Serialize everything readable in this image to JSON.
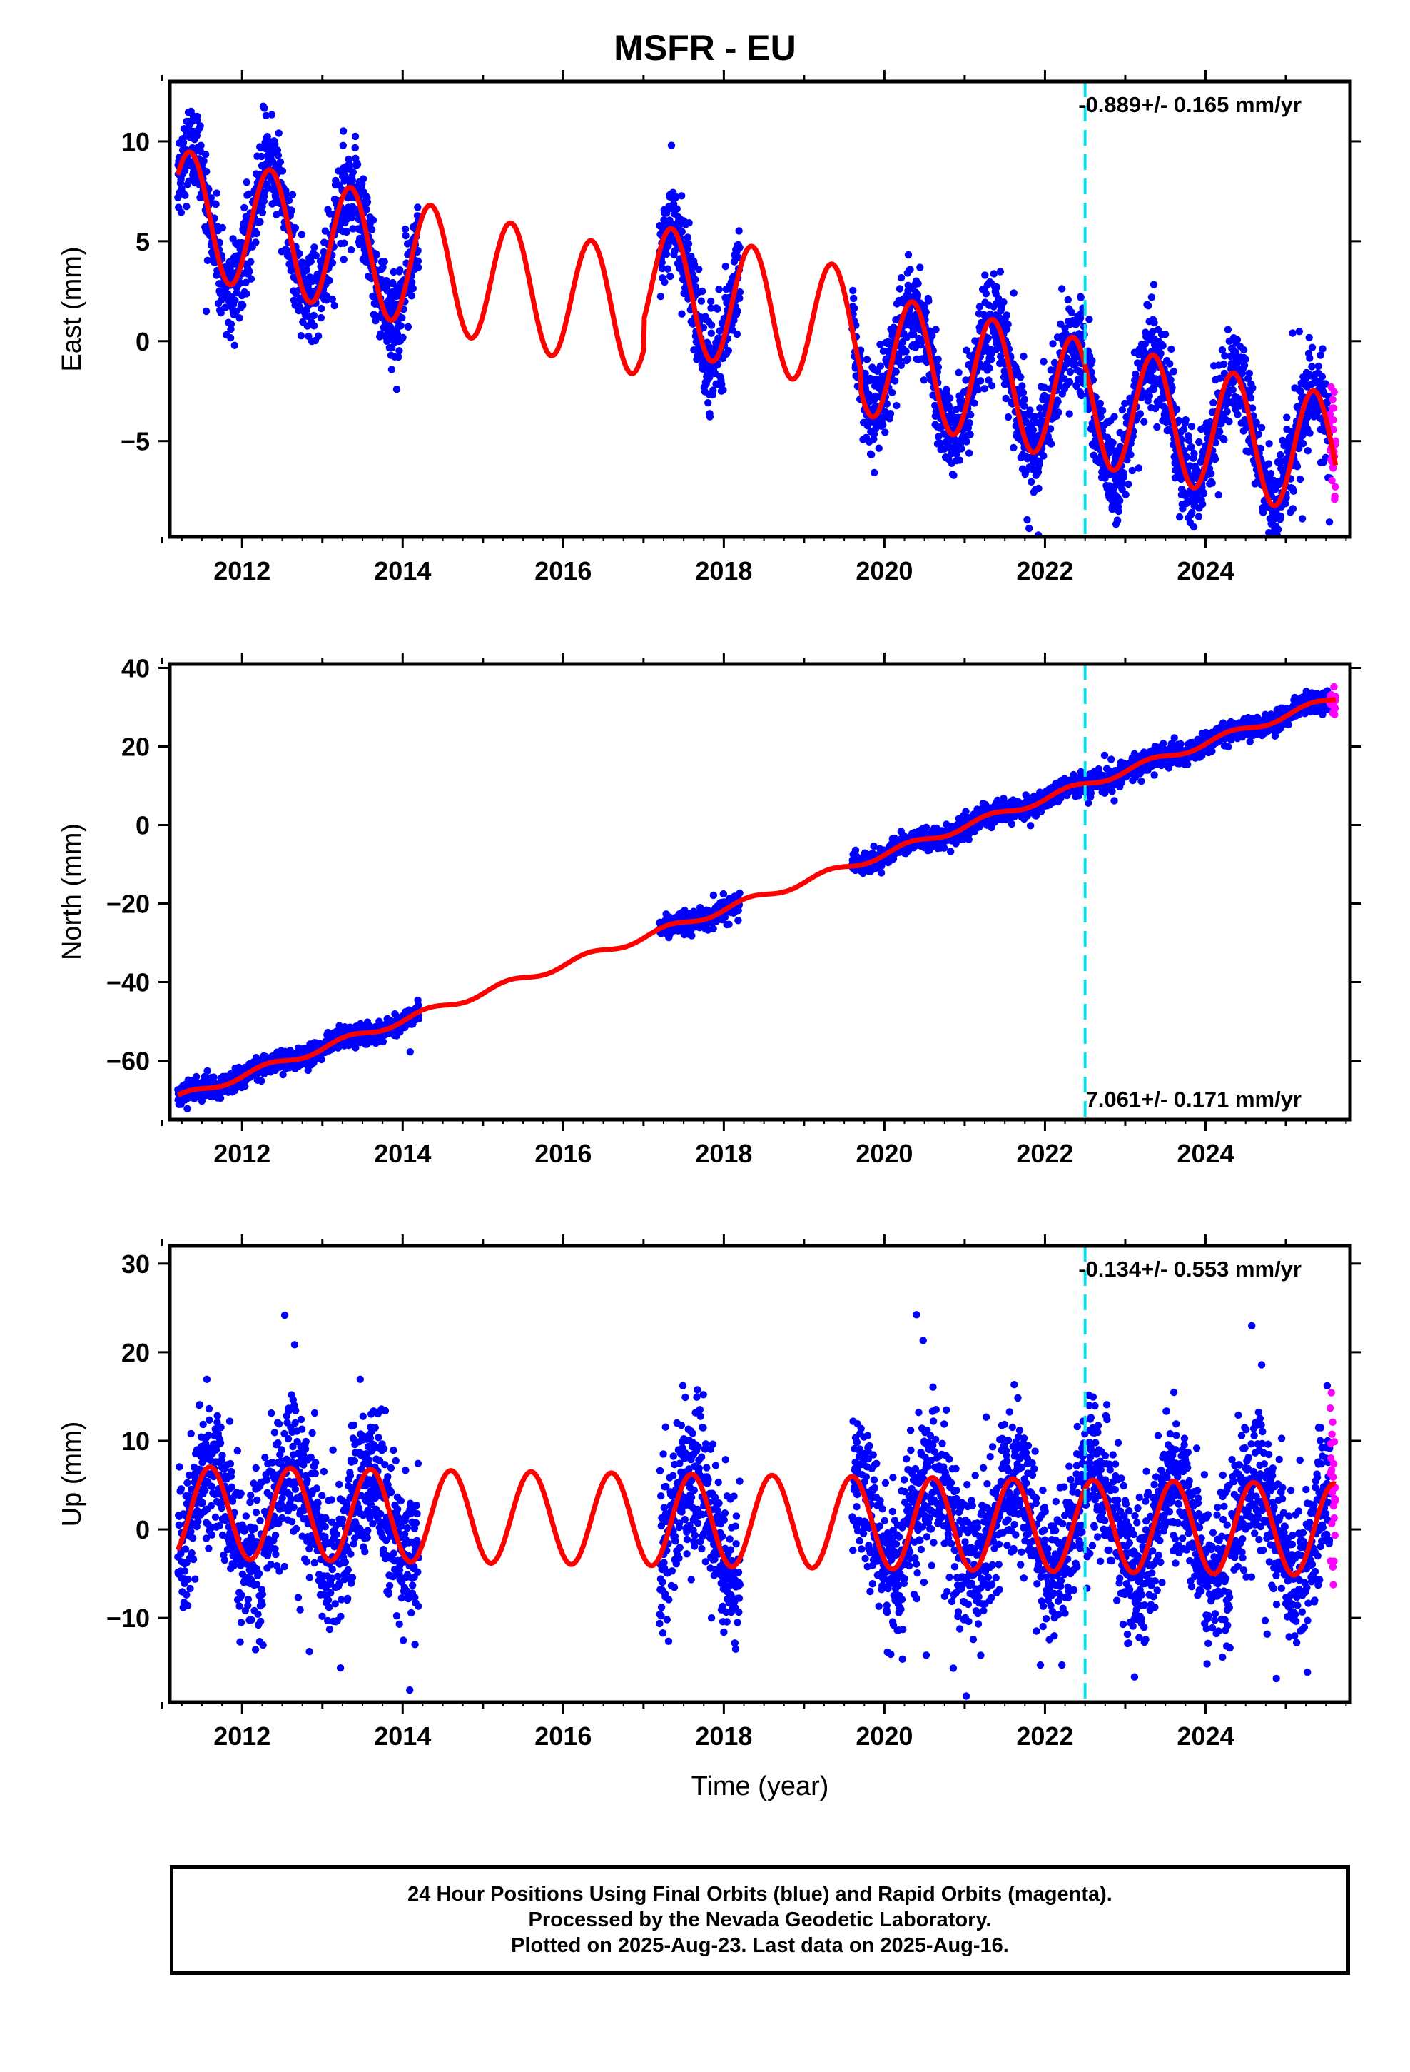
{
  "title": "MSFR - EU",
  "footer": {
    "line1": "24 Hour Positions Using Final Orbits (blue) and Rapid Orbits (magenta).",
    "line2": "Processed by the Nevada Geodetic Laboratory.",
    "line3": "Plotted on 2025-Aug-23. Last data on 2025-Aug-16."
  },
  "colors": {
    "final_orbits": "#0000ff",
    "rapid_orbits": "#ff00ff",
    "model_fit": "#ff0000",
    "event_line": "#00e5ee"
  },
  "chart_data": [
    {
      "type": "scatter",
      "panel": "east",
      "ylabel": "East (mm)",
      "xlabel": "",
      "xlim": [
        2011.1,
        2025.8
      ],
      "ylim": [
        -9.8,
        13.0
      ],
      "xticks": [
        2012,
        2014,
        2016,
        2018,
        2020,
        2022,
        2024
      ],
      "yticks": [
        -5,
        0,
        5,
        10
      ],
      "rate_annotation": "-0.889+/- 0.165 mm/yr",
      "rate_position": "top-right",
      "event_line_x": 2022.5,
      "data_segments": [
        [
          2011.2,
          2014.2
        ],
        [
          2017.2,
          2018.2
        ],
        [
          2019.6,
          2025.55
        ]
      ],
      "rapid_segment": [
        2025.55,
        2025.62
      ],
      "model": {
        "rate": -0.889,
        "offset": 6.5,
        "annual_amplitude": 3.1,
        "peak_phase": 0.35,
        "steps": [
          {
            "year": 2017.0,
            "size": 1.5
          },
          {
            "year": 2019.7,
            "size": -1.0
          }
        ]
      },
      "scatter_sigma": 1.1
    },
    {
      "type": "scatter",
      "panel": "north",
      "ylabel": "North (mm)",
      "xlabel": "",
      "xlim": [
        2011.1,
        2025.8
      ],
      "ylim": [
        -75,
        41
      ],
      "xticks": [
        2012,
        2014,
        2016,
        2018,
        2020,
        2022,
        2024
      ],
      "yticks": [
        -60,
        -40,
        -20,
        0,
        20,
        40
      ],
      "rate_annotation": "7.061+/- 0.171 mm/yr",
      "rate_position": "bottom-right",
      "event_line_x": 2022.5,
      "data_segments": [
        [
          2011.2,
          2014.2
        ],
        [
          2017.2,
          2018.2
        ],
        [
          2019.6,
          2025.55
        ]
      ],
      "rapid_segment": [
        2025.55,
        2025.62
      ],
      "model": {
        "rate": 7.061,
        "offset": -69.5,
        "annual_amplitude": 0.9,
        "peak_phase": 0.3,
        "steps": []
      },
      "scatter_sigma": 1.2
    },
    {
      "type": "scatter",
      "panel": "up",
      "ylabel": "Up (mm)",
      "xlabel": "Time (year)",
      "xlim": [
        2011.1,
        2025.8
      ],
      "ylim": [
        -19.5,
        32
      ],
      "xticks": [
        2012,
        2014,
        2016,
        2018,
        2020,
        2022,
        2024
      ],
      "yticks": [
        -10,
        0,
        10,
        20,
        30
      ],
      "rate_annotation": "-0.134+/- 0.553 mm/yr",
      "rate_position": "top-right",
      "event_line_x": 2022.5,
      "data_segments": [
        [
          2011.2,
          2014.2
        ],
        [
          2017.2,
          2018.2
        ],
        [
          2019.6,
          2025.55
        ]
      ],
      "rapid_segment": [
        2025.55,
        2025.62
      ],
      "model": {
        "rate": -0.134,
        "offset": 1.9,
        "annual_amplitude": 5.2,
        "peak_phase": 0.6,
        "steps": []
      },
      "scatter_sigma": 4.0
    }
  ]
}
